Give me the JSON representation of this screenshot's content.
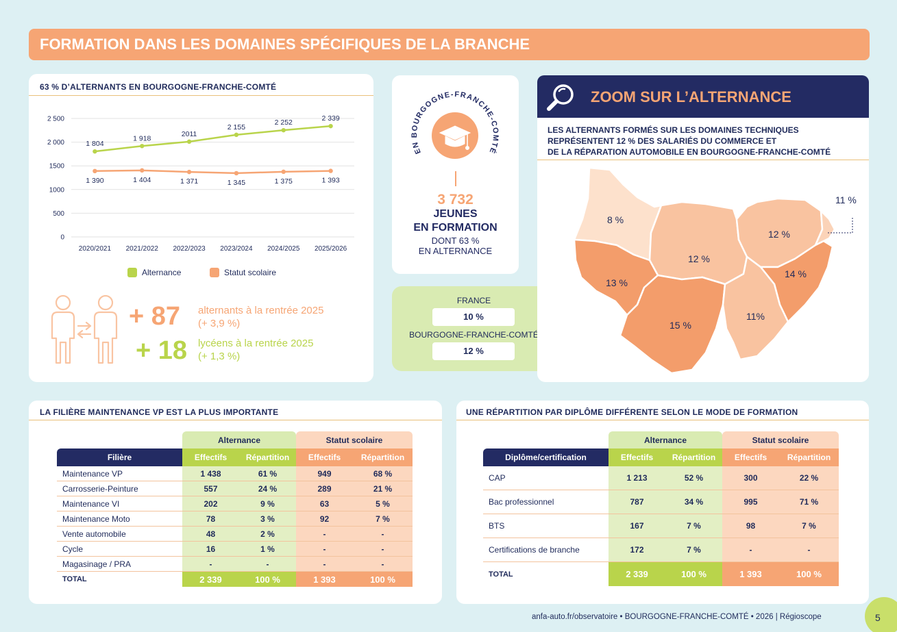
{
  "banner": {
    "title": "FORMATION DANS LES DOMAINES SPÉCIFIQUES DE LA BRANCHE"
  },
  "alternants_card": {
    "title": "63 % D’ALTERNANTS EN BOURGOGNE-FRANCHE-COMTÉ",
    "legend_alt": "Alternance",
    "legend_scol": "Statut scolaire",
    "plus_alt": "+ 87",
    "plus_alt_text": "alternants à la rentrée 2025",
    "plus_alt_pct": "(+ 3,9 %)",
    "plus_lyc": "+ 18",
    "plus_lyc_text": "lycéens à la rentrée 2025",
    "plus_lyc_pct": "(+ 1,3 %)"
  },
  "chart_data": {
    "type": "line",
    "title": "63 % D’ALTERNANTS EN BOURGOGNE-FRANCHE-COMTÉ",
    "categories": [
      "2020/2021",
      "2021/2022",
      "2022/2023",
      "2023/2024",
      "2024/2025",
      "2025/2026"
    ],
    "series": [
      {
        "name": "Alternance",
        "values": [
          1804,
          1918,
          2011,
          2155,
          2252,
          2339
        ],
        "labels": [
          "1 804",
          "1 918",
          "2011",
          "2 155",
          "2 252",
          "2 339"
        ],
        "color": "#b9d44b"
      },
      {
        "name": "Statut scolaire",
        "values": [
          1390,
          1404,
          1371,
          1345,
          1375,
          1393
        ],
        "labels": [
          "1 390",
          "1 404",
          "1 371",
          "1 345",
          "1 375",
          "1 393"
        ],
        "color": "#f6a574"
      }
    ],
    "yticks": [
      0,
      500,
      1000,
      1500,
      2000,
      2500
    ],
    "ytick_labels": [
      "0",
      "500",
      "1000",
      "1500",
      "2 000",
      "2 500"
    ],
    "ylim": [
      0,
      2500
    ],
    "xlabel": "",
    "ylabel": "",
    "legend": "bottom"
  },
  "jeunes": {
    "ring_text": "EN BOURGOGNE-FRANCHE-COMTÉ",
    "count": "3 732",
    "line1": "JEUNES",
    "line2": "EN FORMATION",
    "line3": "DONT 63 %",
    "line4": "EN ALTERNANCE"
  },
  "compare": {
    "france_label": "FRANCE",
    "france_val": "10 %",
    "region_label": "BOURGOGNE-FRANCHE-COMTÉ",
    "region_val": "12 %"
  },
  "zoom": {
    "title": "ZOOM SUR L’ALTERNANCE",
    "desc1": "LES ALTERNANTS FORMÉS SUR LES DOMAINES TECHNIQUES",
    "desc2": "REPRÉSENTENT 12 % DES SALARIÉS DU COMMERCE ET",
    "desc3": "DE LA RÉPARATION AUTOMOBILE EN BOURGOGNE-FRANCHE-COMTÉ",
    "dept": [
      {
        "pct": "8 %",
        "share": 8
      },
      {
        "pct": "12 %",
        "share": 12
      },
      {
        "pct": "12 %",
        "share": 12
      },
      {
        "pct": "11 %",
        "share": 11
      },
      {
        "pct": "13 %",
        "share": 13
      },
      {
        "pct": "14 %",
        "share": 14
      },
      {
        "pct": "15 %",
        "share": 15
      },
      {
        "pct": "11%",
        "share": 11
      }
    ]
  },
  "filiere": {
    "title": "LA FILIÈRE MAINTENANCE VP EST LA PLUS IMPORTANTE",
    "group_alt": "Alternance",
    "group_scol": "Statut scolaire",
    "col_label": "Filière",
    "col_eff": "Effectifs",
    "col_rep": "Répartition",
    "rows": [
      {
        "label": "Maintenance VP",
        "a_eff": "1 438",
        "a_rep": "61 %",
        "s_eff": "949",
        "s_rep": "68 %"
      },
      {
        "label": "Carrosserie-Peinture",
        "a_eff": "557",
        "a_rep": "24 %",
        "s_eff": "289",
        "s_rep": "21 %"
      },
      {
        "label": "Maintenance VI",
        "a_eff": "202",
        "a_rep": "9 %",
        "s_eff": "63",
        "s_rep": "5 %"
      },
      {
        "label": "Maintenance Moto",
        "a_eff": "78",
        "a_rep": "3 %",
        "s_eff": "92",
        "s_rep": "7 %"
      },
      {
        "label": "Vente automobile",
        "a_eff": "48",
        "a_rep": "2 %",
        "s_eff": "-",
        "s_rep": "-"
      },
      {
        "label": "Cycle",
        "a_eff": "16",
        "a_rep": "1 %",
        "s_eff": "-",
        "s_rep": "-"
      },
      {
        "label": "Magasinage / PRA",
        "a_eff": "-",
        "a_rep": "-",
        "s_eff": "-",
        "s_rep": "-"
      }
    ],
    "total": {
      "label": "TOTAL",
      "a_eff": "2 339",
      "a_rep": "100 %",
      "s_eff": "1 393",
      "s_rep": "100 %"
    }
  },
  "diplome": {
    "title": "UNE RÉPARTITION PAR DIPLÔME DIFFÉRENTE SELON LE MODE DE FORMATION",
    "group_alt": "Alternance",
    "group_scol": "Statut scolaire",
    "col_label": "Diplôme/certification",
    "col_eff": "Effectifs",
    "col_rep": "Répartition",
    "rows": [
      {
        "label": "CAP",
        "a_eff": "1 213",
        "a_rep": "52 %",
        "s_eff": "300",
        "s_rep": "22 %"
      },
      {
        "label": "Bac professionnel",
        "a_eff": "787",
        "a_rep": "34 %",
        "s_eff": "995",
        "s_rep": "71 %"
      },
      {
        "label": "BTS",
        "a_eff": "167",
        "a_rep": "7 %",
        "s_eff": "98",
        "s_rep": "7 %"
      },
      {
        "label": "Certifications de branche",
        "a_eff": "172",
        "a_rep": "7 %",
        "s_eff": "-",
        "s_rep": "-"
      }
    ],
    "total": {
      "label": "TOTAL",
      "a_eff": "2 339",
      "a_rep": "100 %",
      "s_eff": "1 393",
      "s_rep": "100 %"
    }
  },
  "footer": {
    "text": "anfa-auto.fr/observatoire  •  BOURGOGNE-FRANCHE-COMTÉ  •  2026 | Régioscope",
    "page": "5"
  },
  "colors": {
    "accent_orange": "#f6a574",
    "accent_green": "#b9d44b",
    "navy": "#232b63"
  }
}
